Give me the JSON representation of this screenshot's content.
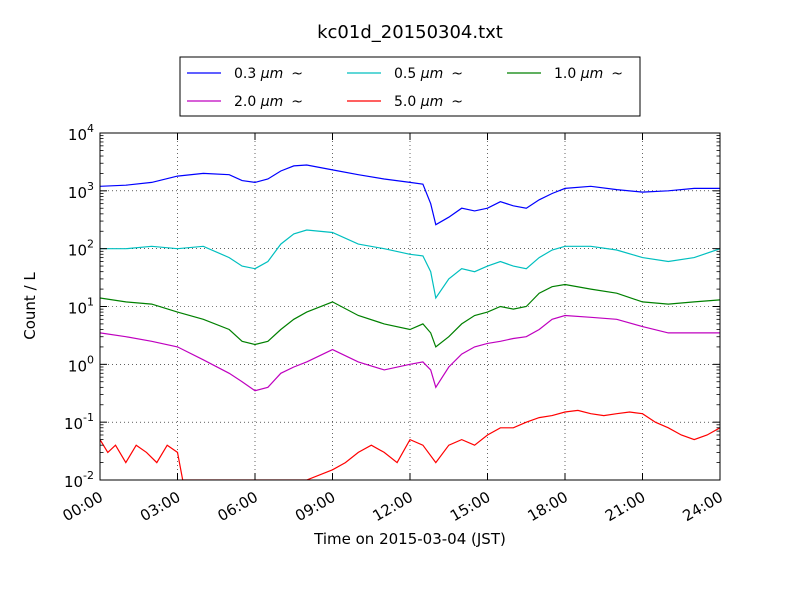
{
  "chart_data": {
    "type": "line",
    "title": "kc01d_20150304.txt",
    "xlabel": "Time on 2015-03-04 (JST)",
    "ylabel": "Count / L",
    "xlim_hours": [
      0,
      24
    ],
    "ylim": [
      0.01,
      10000
    ],
    "y_scale": "log",
    "grid": true,
    "legend_position": "top-center",
    "x_ticks": [
      {
        "label": "00:00",
        "hour": 0
      },
      {
        "label": "03:00",
        "hour": 3
      },
      {
        "label": "06:00",
        "hour": 6
      },
      {
        "label": "09:00",
        "hour": 9
      },
      {
        "label": "12:00",
        "hour": 12
      },
      {
        "label": "15:00",
        "hour": 15
      },
      {
        "label": "18:00",
        "hour": 18
      },
      {
        "label": "21:00",
        "hour": 21
      },
      {
        "label": "24:00",
        "hour": 24
      }
    ],
    "y_ticks": [
      {
        "base": "10",
        "exp": "-2",
        "value": 0.01
      },
      {
        "base": "10",
        "exp": "-1",
        "value": 0.1
      },
      {
        "base": "10",
        "exp": "0",
        "value": 1
      },
      {
        "base": "10",
        "exp": "1",
        "value": 10
      },
      {
        "base": "10",
        "exp": "2",
        "value": 100
      },
      {
        "base": "10",
        "exp": "3",
        "value": 1000
      },
      {
        "base": "10",
        "exp": "4",
        "value": 10000
      }
    ],
    "series": [
      {
        "name": "0.3 μm  ~",
        "legend_size": "0.3",
        "legend_unit": "μm",
        "legend_suffix": "~",
        "color": "#0000ff",
        "x": [
          0,
          1,
          2,
          3,
          4,
          5,
          5.5,
          6,
          6.5,
          7,
          7.5,
          8,
          9,
          10,
          11,
          12,
          12.5,
          12.8,
          13,
          13.5,
          14,
          14.5,
          15,
          15.5,
          16,
          16.5,
          17,
          17.5,
          18,
          19,
          20,
          21,
          22,
          23,
          24
        ],
        "y": [
          1200,
          1250,
          1400,
          1800,
          2000,
          1900,
          1500,
          1400,
          1600,
          2200,
          2700,
          2800,
          2300,
          1900,
          1600,
          1400,
          1300,
          600,
          260,
          350,
          500,
          450,
          500,
          650,
          550,
          500,
          700,
          900,
          1100,
          1200,
          1050,
          950,
          1000,
          1100,
          1100
        ]
      },
      {
        "name": "0.5 μm  ~",
        "legend_size": "0.5",
        "legend_unit": "μm",
        "legend_suffix": "~",
        "color": "#00bfbf",
        "x": [
          0,
          1,
          2,
          3,
          4,
          5,
          5.5,
          6,
          6.5,
          7,
          7.5,
          8,
          9,
          10,
          11,
          12,
          12.5,
          12.8,
          13,
          13.5,
          14,
          14.5,
          15,
          15.5,
          16,
          16.5,
          17,
          17.5,
          18,
          19,
          20,
          21,
          22,
          23,
          24
        ],
        "y": [
          100,
          100,
          110,
          100,
          110,
          70,
          50,
          45,
          60,
          120,
          180,
          210,
          190,
          120,
          100,
          80,
          75,
          40,
          14,
          30,
          45,
          40,
          50,
          60,
          50,
          45,
          70,
          95,
          110,
          110,
          95,
          70,
          60,
          70,
          100
        ]
      },
      {
        "name": "1.0 μm  ~",
        "legend_size": "1.0",
        "legend_unit": "μm",
        "legend_suffix": "~",
        "color": "#008000",
        "x": [
          0,
          1,
          2,
          3,
          4,
          5,
          5.5,
          6,
          6.5,
          7,
          7.5,
          8,
          9,
          10,
          11,
          12,
          12.5,
          12.8,
          13,
          13.5,
          14,
          14.5,
          15,
          15.5,
          16,
          16.5,
          17,
          17.5,
          18,
          19,
          20,
          21,
          22,
          23,
          24
        ],
        "y": [
          14,
          12,
          11,
          8,
          6,
          4,
          2.5,
          2.2,
          2.5,
          4,
          6,
          8,
          12,
          7,
          5,
          4,
          5,
          3.5,
          2,
          3,
          5,
          7,
          8,
          10,
          9,
          10,
          17,
          22,
          24,
          20,
          17,
          12,
          11,
          12,
          13
        ]
      },
      {
        "name": "2.0 μm  ~",
        "legend_size": "2.0",
        "legend_unit": "μm",
        "legend_suffix": "~",
        "color": "#bf00bf",
        "x": [
          0,
          1,
          2,
          3,
          4,
          5,
          5.5,
          6,
          6.5,
          7,
          7.5,
          8,
          9,
          10,
          11,
          12,
          12.5,
          12.8,
          13,
          13.5,
          14,
          14.5,
          15,
          15.5,
          16,
          16.5,
          17,
          17.5,
          18,
          19,
          20,
          21,
          22,
          23,
          24
        ],
        "y": [
          3.5,
          3,
          2.5,
          2,
          1.2,
          0.7,
          0.5,
          0.35,
          0.4,
          0.7,
          0.9,
          1.1,
          1.8,
          1.1,
          0.8,
          1,
          1.1,
          0.8,
          0.4,
          0.9,
          1.5,
          2,
          2.3,
          2.5,
          2.8,
          3,
          4,
          6,
          7,
          6.5,
          6,
          4.5,
          3.5,
          3.5,
          3.5
        ]
      },
      {
        "name": "5.0 μm  ~",
        "legend_size": "5.0",
        "legend_unit": "μm",
        "legend_suffix": "~",
        "color": "#ff0000",
        "x": [
          0,
          0.3,
          0.6,
          1,
          1.4,
          1.8,
          2.2,
          2.6,
          3,
          3.2,
          4.2,
          8,
          9,
          9.5,
          10,
          10.5,
          11,
          11.5,
          12,
          12.5,
          13,
          13.5,
          14,
          14.5,
          15,
          15.5,
          16,
          16.5,
          17,
          17.5,
          18,
          18.5,
          19,
          19.5,
          20,
          20.5,
          21,
          21.5,
          22,
          22.5,
          23,
          23.5,
          24
        ],
        "y": [
          0.05,
          0.03,
          0.04,
          0.02,
          0.04,
          0.03,
          0.02,
          0.04,
          0.03,
          0.01,
          0.01,
          0.01,
          0.015,
          0.02,
          0.03,
          0.04,
          0.03,
          0.02,
          0.05,
          0.04,
          0.02,
          0.04,
          0.05,
          0.04,
          0.06,
          0.08,
          0.08,
          0.1,
          0.12,
          0.13,
          0.15,
          0.16,
          0.14,
          0.13,
          0.14,
          0.15,
          0.14,
          0.1,
          0.08,
          0.06,
          0.05,
          0.06,
          0.08
        ]
      }
    ]
  }
}
